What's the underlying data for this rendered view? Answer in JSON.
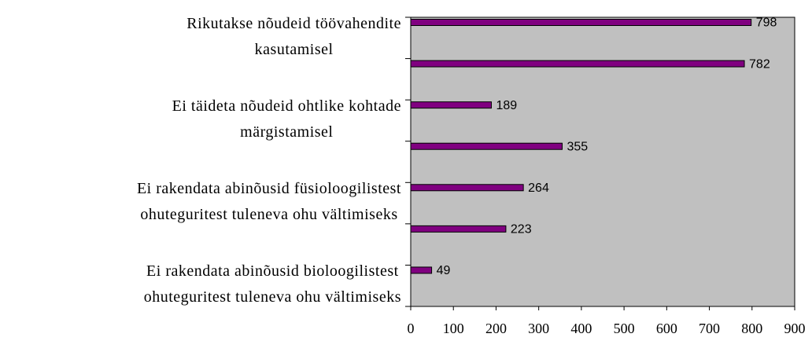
{
  "chart_data": {
    "type": "bar",
    "orientation": "horizontal",
    "categories": [
      "Rikutakse nõudeid töövahendite\nkasutamisel",
      null,
      "Ei täideta nõudeid ohtlike kohtade\nmärgistamisel",
      null,
      "Ei rakendata abinõusid füsioloogilistest\nohuteguritest tuleneva ohu vältimiseks",
      null,
      "Ei rakendata abinõusid bioloogilistest\nohuteguritest tuleneva ohu vältimiseks"
    ],
    "values": [
      798,
      782,
      189,
      355,
      264,
      223,
      49
    ],
    "color": "#800080",
    "xlim": [
      0,
      900
    ],
    "xticks": [
      0,
      100,
      200,
      300,
      400,
      500,
      600,
      700,
      800,
      900
    ]
  }
}
